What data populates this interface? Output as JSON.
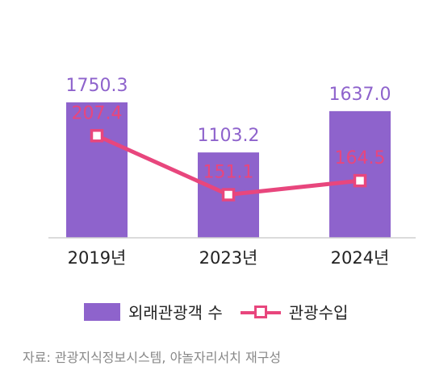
{
  "chart_data": {
    "type": "bar",
    "categories": [
      "2019년",
      "2023년",
      "2024년"
    ],
    "series": [
      {
        "name": "외래관광객 수",
        "type": "bar",
        "color": "#8e63cc",
        "values": [
          1750.3,
          1103.2,
          1637.0
        ],
        "labels": [
          "1750.3",
          "1103.2",
          "1637.0"
        ]
      },
      {
        "name": "관광수입",
        "type": "line",
        "color": "#e8467d",
        "values": [
          207.4,
          151.1,
          164.5
        ],
        "labels": [
          "207.4",
          "151.1",
          "164.5"
        ]
      }
    ],
    "grid": false,
    "legend_position": "bottom"
  },
  "source": "자료: 관광지식정보시스템, 야놀자리서치 재구성"
}
